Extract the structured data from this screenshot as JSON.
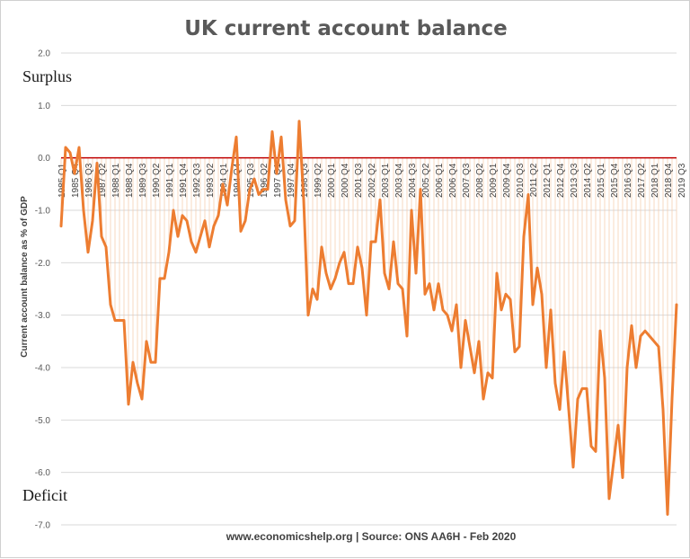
{
  "chart_data": {
    "type": "line",
    "title": "UK current account balance",
    "ylabel": "Current account balance as % of GDP",
    "xlabel": "",
    "ylim": [
      -7.0,
      2.0
    ],
    "yticks": [
      "2.0",
      "1.0",
      "0.0",
      "-1.0",
      "-2.0",
      "-3.0",
      "-4.0",
      "-5.0",
      "-6.0",
      "-7.0"
    ],
    "ytick_values": [
      2,
      1,
      0,
      -1,
      -2,
      -3,
      -4,
      -5,
      -6,
      -7
    ],
    "x_tick_labels": [
      "1985 Q1",
      "1985 Q4",
      "1986 Q3",
      "1987 Q2",
      "1988 Q1",
      "1988 Q4",
      "1989 Q3",
      "1990 Q2",
      "1991 Q1",
      "1991 Q4",
      "1992 Q3",
      "1993 Q2",
      "1994 Q1",
      "1994 Q4",
      "1995 Q3",
      "1996 Q2",
      "1997 Q1",
      "1997 Q4",
      "1998 Q3",
      "1999 Q2",
      "2000 Q1",
      "2000 Q4",
      "2001 Q3",
      "2002 Q2",
      "2003 Q1",
      "2003 Q4",
      "2004 Q3",
      "2005 Q2",
      "2006 Q1",
      "2006 Q4",
      "2007 Q3",
      "2008 Q2",
      "2009 Q1",
      "2009 Q4",
      "2010 Q3",
      "2011 Q2",
      "2012 Q1",
      "2012 Q4",
      "2013 Q3",
      "2014 Q2",
      "2015 Q1",
      "2015 Q4",
      "2016 Q3",
      "2017 Q2",
      "2018 Q1",
      "2018 Q4",
      "2019 Q3"
    ],
    "x_start": "1985 Q1",
    "x_end": "2019 Q4",
    "grid": true,
    "zero_line_color": "#c00000",
    "series": [
      {
        "color": "#ed7d31",
        "values": [
          -1.3,
          0.2,
          0.1,
          -0.3,
          0.2,
          -1.0,
          -1.8,
          -1.2,
          -0.1,
          -1.5,
          -1.7,
          -2.8,
          -3.1,
          -3.1,
          -3.1,
          -4.7,
          -3.9,
          -4.3,
          -4.6,
          -3.5,
          -3.9,
          -3.9,
          -2.3,
          -2.3,
          -1.8,
          -1.0,
          -1.5,
          -1.1,
          -1.2,
          -1.6,
          -1.8,
          -1.5,
          -1.2,
          -1.7,
          -1.3,
          -1.1,
          -0.5,
          -0.9,
          -0.2,
          0.4,
          -1.4,
          -1.2,
          -0.6,
          -0.4,
          -0.7,
          -0.6,
          -0.6,
          0.5,
          -0.3,
          0.4,
          -0.8,
          -1.3,
          -1.2,
          0.7,
          -0.8,
          -3.0,
          -2.5,
          -2.7,
          -1.7,
          -2.2,
          -2.5,
          -2.3,
          -2.0,
          -1.8,
          -2.4,
          -2.4,
          -1.7,
          -2.1,
          -3.0,
          -1.6,
          -1.6,
          -0.8,
          -2.2,
          -2.5,
          -1.6,
          -2.4,
          -2.5,
          -3.4,
          -1.0,
          -2.2,
          -0.6,
          -2.6,
          -2.4,
          -2.9,
          -2.4,
          -2.9,
          -3.0,
          -3.3,
          -2.8,
          -4.0,
          -3.1,
          -3.6,
          -4.1,
          -3.5,
          -4.6,
          -4.1,
          -4.2,
          -2.2,
          -2.9,
          -2.6,
          -2.7,
          -3.7,
          -3.6,
          -1.5,
          -0.7,
          -2.8,
          -2.1,
          -2.6,
          -4.0,
          -2.9,
          -4.3,
          -4.8,
          -3.7,
          -4.8,
          -5.9,
          -4.6,
          -4.4,
          -4.4,
          -5.5,
          -5.6,
          -3.3,
          -4.2,
          -6.5,
          -5.8,
          -5.1,
          -6.1,
          -4.0,
          -3.2,
          -4.0,
          -3.4,
          -3.3,
          -3.4,
          -3.5,
          -3.6,
          -4.8,
          -6.8,
          -4.6,
          -2.8
        ]
      }
    ],
    "annotations": {
      "surplus": "Surplus",
      "deficit": "Deficit"
    },
    "source": "www.economicshelp.org | Source: ONS AA6H - Feb 2020"
  }
}
